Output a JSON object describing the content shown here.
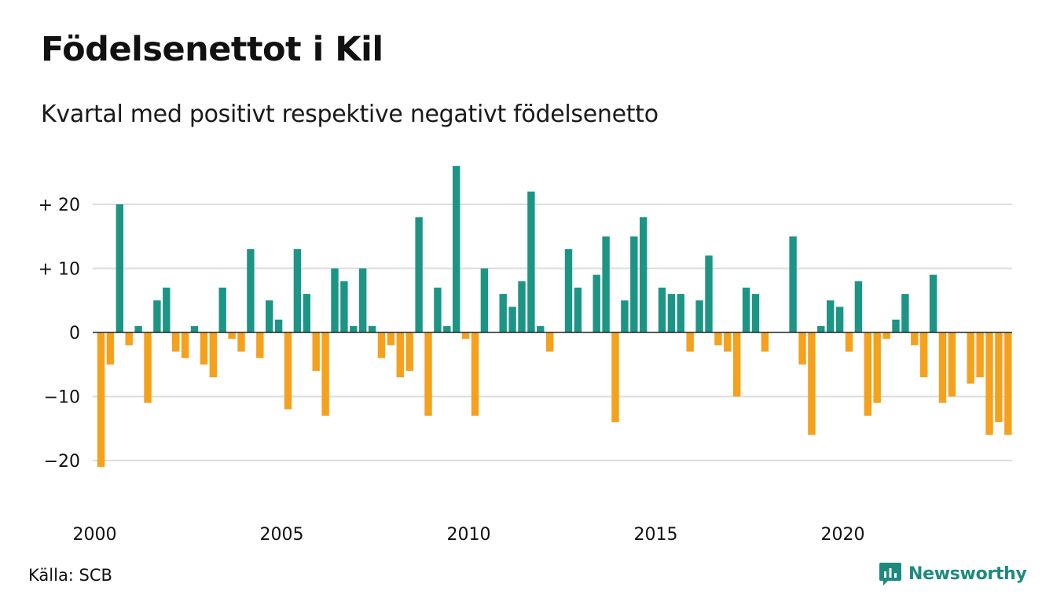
{
  "title": "Födelsenettot i Kil",
  "subtitle": "Kvartal med positivt respektive negativt födelsenetto",
  "source": "Källa: SCB",
  "brand": "Newsworthy",
  "colors": {
    "positive": "#1d9585",
    "negative": "#f5a11c",
    "grid": "#dddddd",
    "zero_line": "#222222",
    "brand": "#1d8a7f"
  },
  "chart_data": {
    "type": "bar",
    "x_start_year": 2000,
    "periods_per_year": 4,
    "ylim": [
      -24,
      27
    ],
    "y_ticks": [
      {
        "value": 20,
        "label": "+ 20"
      },
      {
        "value": 10,
        "label": "+ 10"
      },
      {
        "value": 0,
        "label": "0"
      },
      {
        "value": -10,
        "label": "−10"
      },
      {
        "value": -20,
        "label": "−20"
      }
    ],
    "x_ticks": [
      {
        "value": 2000,
        "label": "2000"
      },
      {
        "value": 2005,
        "label": "2005"
      },
      {
        "value": 2010,
        "label": "2010"
      },
      {
        "value": 2015,
        "label": "2015"
      },
      {
        "value": 2020,
        "label": "2020"
      }
    ],
    "grid": true,
    "values": [
      -21,
      -5,
      20,
      -2,
      1,
      -11,
      5,
      7,
      -3,
      -4,
      1,
      -5,
      -7,
      7,
      -1,
      -3,
      13,
      -4,
      5,
      2,
      -12,
      13,
      6,
      -6,
      -13,
      10,
      8,
      1,
      10,
      1,
      -4,
      -2,
      -7,
      -6,
      18,
      -13,
      7,
      1,
      26,
      -1,
      -13,
      10,
      0,
      6,
      4,
      8,
      22,
      1,
      -3,
      0,
      13,
      7,
      0,
      9,
      15,
      -14,
      5,
      15,
      18,
      0,
      7,
      6,
      6,
      -3,
      5,
      12,
      -2,
      -3,
      -10,
      7,
      6,
      -3,
      0,
      0,
      15,
      -5,
      -16,
      1,
      5,
      4,
      -3,
      8,
      -13,
      -11,
      -1,
      2,
      6,
      -2,
      -7,
      9,
      -11,
      -10,
      0,
      -8,
      -7,
      -16,
      -14,
      -16
    ]
  }
}
